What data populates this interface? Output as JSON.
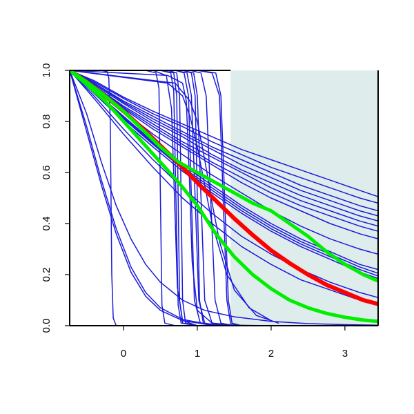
{
  "chart_data": {
    "type": "line",
    "title": "",
    "xlabel": "",
    "ylabel": "",
    "xlim": [
      -0.73,
      3.45
    ],
    "ylim": [
      0,
      1
    ],
    "x_ticks": [
      0,
      1,
      2,
      3
    ],
    "x_tick_labels": [
      "0",
      "1",
      "2",
      "3"
    ],
    "y_ticks": [
      0,
      0.2,
      0.4,
      0.6,
      0.8,
      1.0
    ],
    "y_tick_labels": [
      "0.0",
      "0.2",
      "0.4",
      "0.6",
      "0.8",
      "1.0"
    ],
    "grid": false,
    "legend": "none",
    "shaded_region": {
      "x_from": 1.45,
      "x_to": 3.45,
      "y_from": 0,
      "y_to": 1,
      "color": "#dfecec"
    },
    "colors": {
      "blue": "#1a1adb",
      "red": "#ff0000",
      "green": "#00ee00",
      "axis": "#000000"
    },
    "series": [
      {
        "color": "blue",
        "width": 1.5,
        "x": [
          -0.73,
          -0.4,
          0,
          0.4,
          0.8,
          1.2,
          1.6,
          2,
          2.4,
          2.8,
          3.2,
          3.45
        ],
        "y": [
          1,
          0.96,
          0.895,
          0.84,
          0.79,
          0.74,
          0.69,
          0.65,
          0.61,
          0.57,
          0.53,
          0.505
        ]
      },
      {
        "color": "blue",
        "width": 1.5,
        "x": [
          -0.73,
          -0.4,
          0,
          0.4,
          0.8,
          1.2,
          1.6,
          2,
          2.4,
          2.8,
          3.2,
          3.45
        ],
        "y": [
          1,
          0.955,
          0.89,
          0.83,
          0.78,
          0.72,
          0.67,
          0.62,
          0.58,
          0.54,
          0.5,
          0.48
        ]
      },
      {
        "color": "blue",
        "width": 1.5,
        "x": [
          -0.73,
          -0.4,
          0,
          0.4,
          0.8,
          1.2,
          1.6,
          2,
          2.4,
          2.8,
          3.2,
          3.45
        ],
        "y": [
          1,
          0.95,
          0.88,
          0.82,
          0.76,
          0.7,
          0.65,
          0.6,
          0.55,
          0.51,
          0.47,
          0.45
        ]
      },
      {
        "color": "blue",
        "width": 1.5,
        "x": [
          -0.73,
          -0.4,
          0,
          0.4,
          0.8,
          1.2,
          1.6,
          2,
          2.4,
          2.8,
          3.2,
          3.45
        ],
        "y": [
          1,
          0.95,
          0.875,
          0.81,
          0.75,
          0.69,
          0.63,
          0.58,
          0.53,
          0.49,
          0.45,
          0.43
        ]
      },
      {
        "color": "blue",
        "width": 1.5,
        "x": [
          -0.73,
          -0.4,
          0,
          0.4,
          0.8,
          1.2,
          1.6,
          2,
          2.4,
          2.8,
          3.2,
          3.45
        ],
        "y": [
          1,
          0.945,
          0.87,
          0.8,
          0.74,
          0.67,
          0.61,
          0.56,
          0.51,
          0.47,
          0.43,
          0.41
        ]
      },
      {
        "color": "blue",
        "width": 1.5,
        "x": [
          -0.73,
          -0.4,
          0,
          0.4,
          0.8,
          1.2,
          1.6,
          2,
          2.4,
          2.8,
          3.2,
          3.45
        ],
        "y": [
          1,
          0.94,
          0.86,
          0.79,
          0.72,
          0.66,
          0.6,
          0.54,
          0.49,
          0.45,
          0.41,
          0.39
        ]
      },
      {
        "color": "blue",
        "width": 1.5,
        "x": [
          -0.73,
          -0.4,
          0,
          0.4,
          0.8,
          1.2,
          1.6,
          2,
          2.4,
          2.8,
          3.2,
          3.45
        ],
        "y": [
          1,
          0.94,
          0.855,
          0.78,
          0.71,
          0.64,
          0.58,
          0.52,
          0.47,
          0.43,
          0.39,
          0.37
        ]
      },
      {
        "color": "blue",
        "width": 1.5,
        "x": [
          -0.73,
          -0.4,
          0,
          0.4,
          0.8,
          1.2,
          1.6,
          2,
          2.4,
          2.8,
          3.2,
          3.45
        ],
        "y": [
          1,
          0.935,
          0.85,
          0.77,
          0.7,
          0.63,
          0.56,
          0.5,
          0.45,
          0.4,
          0.36,
          0.34
        ]
      },
      {
        "color": "blue",
        "width": 1.5,
        "x": [
          -0.73,
          -0.4,
          0,
          0.4,
          0.8,
          1.2,
          1.6,
          2,
          2.4,
          2.8,
          3.2,
          3.45
        ],
        "y": [
          1,
          0.93,
          0.84,
          0.75,
          0.67,
          0.59,
          0.52,
          0.45,
          0.39,
          0.34,
          0.3,
          0.28
        ]
      },
      {
        "color": "blue",
        "width": 1.5,
        "x": [
          -0.73,
          -0.4,
          0,
          0.4,
          0.8,
          1.2,
          1.6,
          2,
          2.4,
          2.8,
          3.2,
          3.45
        ],
        "y": [
          1,
          0.92,
          0.82,
          0.72,
          0.63,
          0.55,
          0.47,
          0.4,
          0.34,
          0.29,
          0.24,
          0.22
        ]
      },
      {
        "color": "blue",
        "width": 1.5,
        "x": [
          -0.73,
          -0.4,
          0,
          0.4,
          0.8,
          1.2,
          1.6,
          2,
          2.4,
          2.8,
          3.2,
          3.45
        ],
        "y": [
          1,
          0.92,
          0.815,
          0.715,
          0.62,
          0.54,
          0.46,
          0.39,
          0.33,
          0.28,
          0.23,
          0.205
        ]
      },
      {
        "color": "blue",
        "width": 1.5,
        "x": [
          -0.73,
          -0.4,
          0,
          0.4,
          0.8,
          1.2,
          1.6,
          2,
          2.4,
          2.8,
          3.2,
          3.45
        ],
        "y": [
          1,
          0.915,
          0.81,
          0.71,
          0.615,
          0.53,
          0.45,
          0.38,
          0.32,
          0.27,
          0.22,
          0.195
        ]
      },
      {
        "color": "blue",
        "width": 1.5,
        "x": [
          -0.73,
          -0.4,
          0,
          0.4,
          0.8,
          1.2,
          1.6,
          2,
          2.4,
          2.8,
          3.2,
          3.45
        ],
        "y": [
          1,
          0.91,
          0.8,
          0.7,
          0.605,
          0.52,
          0.44,
          0.37,
          0.31,
          0.26,
          0.21,
          0.185
        ]
      },
      {
        "color": "blue",
        "width": 1.5,
        "x": [
          -0.73,
          -0.4,
          0,
          0.4,
          0.8,
          1.2,
          1.6,
          2,
          2.4,
          2.8,
          3.2,
          3.45
        ],
        "y": [
          1,
          0.9,
          0.77,
          0.65,
          0.54,
          0.44,
          0.35,
          0.28,
          0.22,
          0.17,
          0.13,
          0.11
        ]
      },
      {
        "color": "blue",
        "width": 1.5,
        "x": [
          -0.73,
          -0.4,
          0,
          0.4,
          0.8,
          1.2,
          1.6,
          2,
          2.4,
          2.8,
          3.2,
          3.45
        ],
        "y": [
          1,
          0.89,
          0.75,
          0.62,
          0.5,
          0.4,
          0.31,
          0.24,
          0.18,
          0.14,
          0.1,
          0.085
        ]
      },
      {
        "color": "blue",
        "width": 1.5,
        "x": [
          -0.73,
          -0.5,
          -0.3,
          -0.1,
          0.1,
          0.3,
          0.5,
          0.8,
          1.1,
          1.5,
          2,
          2.5
        ],
        "y": [
          1,
          0.78,
          0.57,
          0.38,
          0.23,
          0.13,
          0.07,
          0.025,
          0.008,
          0.002,
          0,
          0
        ]
      },
      {
        "color": "blue",
        "width": 1.5,
        "x": [
          -0.73,
          -0.5,
          -0.3,
          -0.1,
          0.1,
          0.3,
          0.5,
          0.8,
          1.1,
          1.5,
          2,
          2.5
        ],
        "y": [
          1,
          0.76,
          0.55,
          0.36,
          0.21,
          0.115,
          0.06,
          0.02,
          0.006,
          0.001,
          0,
          0
        ]
      },
      {
        "color": "blue",
        "width": 1.5,
        "x": [
          -0.73,
          -0.5,
          -0.3,
          -0.1,
          0.1,
          0.3,
          0.5,
          0.8,
          1.1,
          1.5,
          2,
          2.5,
          3,
          3.45
        ],
        "y": [
          1,
          0.83,
          0.64,
          0.47,
          0.34,
          0.24,
          0.17,
          0.1,
          0.06,
          0.035,
          0.017,
          0.008,
          0.004,
          0.002
        ]
      },
      {
        "color": "blue",
        "width": 1.5,
        "x": [
          -0.73,
          -0.3,
          -0.22,
          -0.2,
          -0.18,
          -0.16,
          -0.14,
          -0.1,
          0.5
        ],
        "y": [
          1,
          1,
          0.995,
          0.97,
          0.8,
          0.2,
          0.03,
          0,
          0
        ]
      },
      {
        "color": "blue",
        "width": 1.5,
        "x": [
          -0.73,
          0.3,
          0.44,
          0.48,
          0.5,
          0.52,
          0.56,
          0.7,
          1.5
        ],
        "y": [
          1,
          1,
          0.99,
          0.93,
          0.5,
          0.08,
          0.01,
          0,
          0
        ]
      },
      {
        "color": "blue",
        "width": 1.5,
        "x": [
          -0.73,
          0.4,
          0.58,
          0.65,
          0.69,
          0.73,
          0.8,
          1,
          1.5
        ],
        "y": [
          1,
          1,
          0.98,
          0.85,
          0.5,
          0.15,
          0.02,
          0,
          0
        ]
      },
      {
        "color": "blue",
        "width": 1.5,
        "x": [
          -0.73,
          0.5,
          0.64,
          0.68,
          0.71,
          0.74,
          0.78,
          1,
          1.5
        ],
        "y": [
          1,
          1,
          0.99,
          0.92,
          0.5,
          0.08,
          0.01,
          0,
          0
        ]
      },
      {
        "color": "blue",
        "width": 1.5,
        "x": [
          -0.73,
          0.5,
          0.68,
          0.72,
          0.74,
          0.76,
          0.8,
          1,
          1.5
        ],
        "y": [
          1,
          1,
          0.99,
          0.9,
          0.5,
          0.1,
          0.01,
          0,
          0
        ]
      },
      {
        "color": "blue",
        "width": 1.5,
        "x": [
          -0.73,
          0.6,
          0.72,
          0.76,
          0.78,
          0.8,
          0.84,
          1,
          1.5
        ],
        "y": [
          1,
          1,
          0.99,
          0.9,
          0.5,
          0.1,
          0.01,
          0,
          0
        ]
      },
      {
        "color": "blue",
        "width": 1.5,
        "x": [
          -0.73,
          0.7,
          0.82,
          0.88,
          0.92,
          0.96,
          1.04,
          1.2,
          1.6
        ],
        "y": [
          1,
          1,
          0.99,
          0.9,
          0.5,
          0.1,
          0.01,
          0,
          0
        ]
      },
      {
        "color": "blue",
        "width": 1.5,
        "x": [
          -0.73,
          0.7,
          0.86,
          0.92,
          0.97,
          1.02,
          1.1,
          1.3,
          1.7
        ],
        "y": [
          1,
          1,
          0.99,
          0.9,
          0.5,
          0.1,
          0.01,
          0,
          0
        ]
      },
      {
        "color": "blue",
        "width": 1.5,
        "x": [
          -0.73,
          0.8,
          0.92,
          0.97,
          1.0,
          1.03,
          1.08,
          1.2,
          1.6
        ],
        "y": [
          1,
          1,
          0.99,
          0.9,
          0.5,
          0.1,
          0.01,
          0,
          0
        ]
      },
      {
        "color": "blue",
        "width": 1.5,
        "x": [
          -0.73,
          0.8,
          0.95,
          1.0,
          1.05,
          1.1,
          1.2,
          1.4,
          1.8
        ],
        "y": [
          1,
          1,
          0.99,
          0.9,
          0.5,
          0.1,
          0.01,
          0,
          0
        ]
      },
      {
        "color": "blue",
        "width": 1.5,
        "x": [
          -0.73,
          0.9,
          1.05,
          1.12,
          1.18,
          1.24,
          1.32,
          1.5,
          1.8
        ],
        "y": [
          1,
          1,
          0.99,
          0.9,
          0.5,
          0.1,
          0.01,
          0,
          0
        ]
      },
      {
        "color": "blue",
        "width": 1.5,
        "x": [
          -0.73,
          1.0,
          1.2,
          1.3,
          1.35,
          1.4,
          1.45,
          1.6,
          1.9
        ],
        "y": [
          1,
          1,
          0.99,
          0.9,
          0.5,
          0.1,
          0.01,
          0,
          0
        ]
      },
      {
        "color": "blue",
        "width": 1.5,
        "x": [
          -0.73,
          1.0,
          1.25,
          1.32,
          1.37,
          1.42,
          1.47,
          1.6,
          1.9
        ],
        "y": [
          1,
          1,
          0.99,
          0.9,
          0.5,
          0.1,
          0.01,
          0,
          0
        ]
      },
      {
        "color": "blue",
        "width": 1.5,
        "x": [
          -0.73,
          0.6,
          0.8,
          0.85,
          0.89,
          0.93,
          1.0,
          1.2,
          1.6
        ],
        "y": [
          1,
          0.98,
          0.95,
          0.88,
          0.6,
          0.25,
          0.06,
          0.01,
          0
        ]
      },
      {
        "color": "blue",
        "width": 1.5,
        "x": [
          -0.73,
          0.6,
          0.8,
          0.9,
          1.0,
          1.1,
          1.2,
          1.4,
          1.7,
          2.0
        ],
        "y": [
          1,
          0.95,
          0.9,
          0.82,
          0.7,
          0.55,
          0.4,
          0.2,
          0.07,
          0.02
        ]
      },
      {
        "color": "blue",
        "width": 1.5,
        "x": [
          -0.73,
          0.7,
          0.9,
          1.0,
          1.1,
          1.2,
          1.3,
          1.5,
          1.8,
          2.1
        ],
        "y": [
          1,
          0.95,
          0.88,
          0.8,
          0.65,
          0.48,
          0.33,
          0.14,
          0.04,
          0.01
        ]
      },
      {
        "color": "red",
        "width": 6,
        "x": [
          -0.73,
          -0.5,
          -0.25,
          0,
          0.25,
          0.5,
          0.75,
          1,
          1.25,
          1.5,
          1.75,
          2,
          2.25,
          2.5,
          2.75,
          3,
          3.25,
          3.45
        ],
        "y": [
          1,
          0.955,
          0.9,
          0.84,
          0.775,
          0.705,
          0.635,
          0.56,
          0.49,
          0.42,
          0.355,
          0.295,
          0.245,
          0.2,
          0.16,
          0.13,
          0.1,
          0.085
        ]
      },
      {
        "color": "green",
        "width": 5,
        "x": [
          -0.73,
          -0.5,
          -0.25,
          0,
          0.25,
          0.5,
          0.75,
          1,
          1.25,
          1.5,
          1.75,
          2,
          2.25,
          2.5,
          2.75,
          3,
          3.25,
          3.45
        ],
        "y": [
          1,
          0.955,
          0.9,
          0.84,
          0.77,
          0.7,
          0.64,
          0.6,
          0.56,
          0.52,
          0.48,
          0.45,
          0.4,
          0.35,
          0.29,
          0.24,
          0.2,
          0.175
        ]
      },
      {
        "color": "green",
        "width": 5,
        "x": [
          -0.73,
          -0.5,
          -0.25,
          0,
          0.25,
          0.5,
          0.75,
          1,
          1.25,
          1.5,
          1.75,
          2,
          2.25,
          2.5,
          2.75,
          3,
          3.25,
          3.45
        ],
        "y": [
          1,
          0.945,
          0.88,
          0.8,
          0.72,
          0.64,
          0.56,
          0.47,
          0.36,
          0.27,
          0.2,
          0.145,
          0.1,
          0.07,
          0.048,
          0.033,
          0.022,
          0.017
        ]
      }
    ]
  }
}
